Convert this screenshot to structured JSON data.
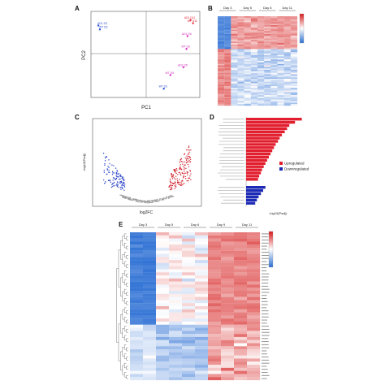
{
  "figure": {
    "panel_labels": [
      "A",
      "B",
      "C",
      "D",
      "E"
    ]
  },
  "panel_a": {
    "xlabel": "PC1",
    "ylabel": "PC2",
    "groups": [
      {
        "color": "#2b4fd1",
        "labels": [
          "AD1 D3",
          "WT D3"
        ]
      },
      {
        "color": "#d12bbd",
        "labels": [
          "AD1 D5",
          "WT D5",
          "AD1 D6",
          "WT D6"
        ]
      },
      {
        "color": "#e21f2e",
        "labels": [
          "AD1 D11",
          "WT D11"
        ]
      }
    ],
    "chart_data": {
      "type": "scatter",
      "xlabel": "PC1",
      "ylabel": "PC2",
      "points": [
        {
          "name": "AD1 D3",
          "x": -0.95,
          "y": 0.72,
          "color": "#2b4fd1"
        },
        {
          "name": "WT D3",
          "x": -0.92,
          "y": 0.62,
          "color": "#2b4fd1"
        },
        {
          "name": "AD1 D11",
          "x": 0.88,
          "y": 0.86,
          "color": "#e21f2e"
        },
        {
          "name": "WT D11",
          "x": 0.93,
          "y": 0.78,
          "color": "#e21f2e"
        },
        {
          "name": "AD1 D6",
          "x": 0.82,
          "y": 0.45,
          "color": "#d12bbd"
        },
        {
          "name": "WT D6",
          "x": 0.8,
          "y": 0.12,
          "color": "#d12bbd"
        },
        {
          "name": "AD1 D5",
          "x": 0.74,
          "y": -0.35,
          "color": "#d12bbd"
        },
        {
          "name": "WT D5",
          "x": 0.48,
          "y": -0.55,
          "color": "#d12bbd"
        },
        {
          "name": "WT D3b",
          "x": 0.35,
          "y": -0.9,
          "color": "#2b4fd1"
        }
      ]
    }
  },
  "panel_b": {
    "groups": [
      "Day 3",
      "Day 5",
      "Day 6",
      "Day 11"
    ]
  },
  "panel_c": {
    "xlabel": "log2FC",
    "ylabel": "-log10(Padj)",
    "chart_data": {
      "type": "scatter",
      "xlabel": "log2FC",
      "ylabel": "-log10(Padj)",
      "series": [
        {
          "color": "#d1222c",
          "count": 160
        },
        {
          "color": "#2a44c8",
          "count": 110
        },
        {
          "color": "#9a9a9a",
          "count": 220
        }
      ]
    }
  },
  "panel_d": {
    "xlabel": "-log10(Padj)",
    "legend": [
      {
        "label": "Upregulated",
        "color": "#e21f2e"
      },
      {
        "label": "Downregulated",
        "color": "#1d2ab5"
      }
    ],
    "chart_data": {
      "type": "bar",
      "orientation": "horizontal",
      "series": [
        {
          "name": "Upregulated",
          "color": "#e21f2e",
          "values": [
            9.8,
            8.6,
            7.6,
            7.2,
            6.8,
            6.3,
            5.9,
            5.6,
            5.2,
            4.9,
            4.6,
            4.3,
            4.0,
            3.7,
            3.4,
            3.1,
            2.8,
            2.6,
            2.3,
            2.1
          ]
        },
        {
          "name": "Downregulated",
          "color": "#1d2ab5",
          "values": [
            3.4,
            3.0,
            2.6,
            2.2,
            1.9,
            1.6
          ]
        }
      ]
    }
  },
  "panel_e": {
    "groups": [
      "Day 3",
      "Day 5",
      "Day 6",
      "Day 9",
      "Day 11"
    ]
  }
}
